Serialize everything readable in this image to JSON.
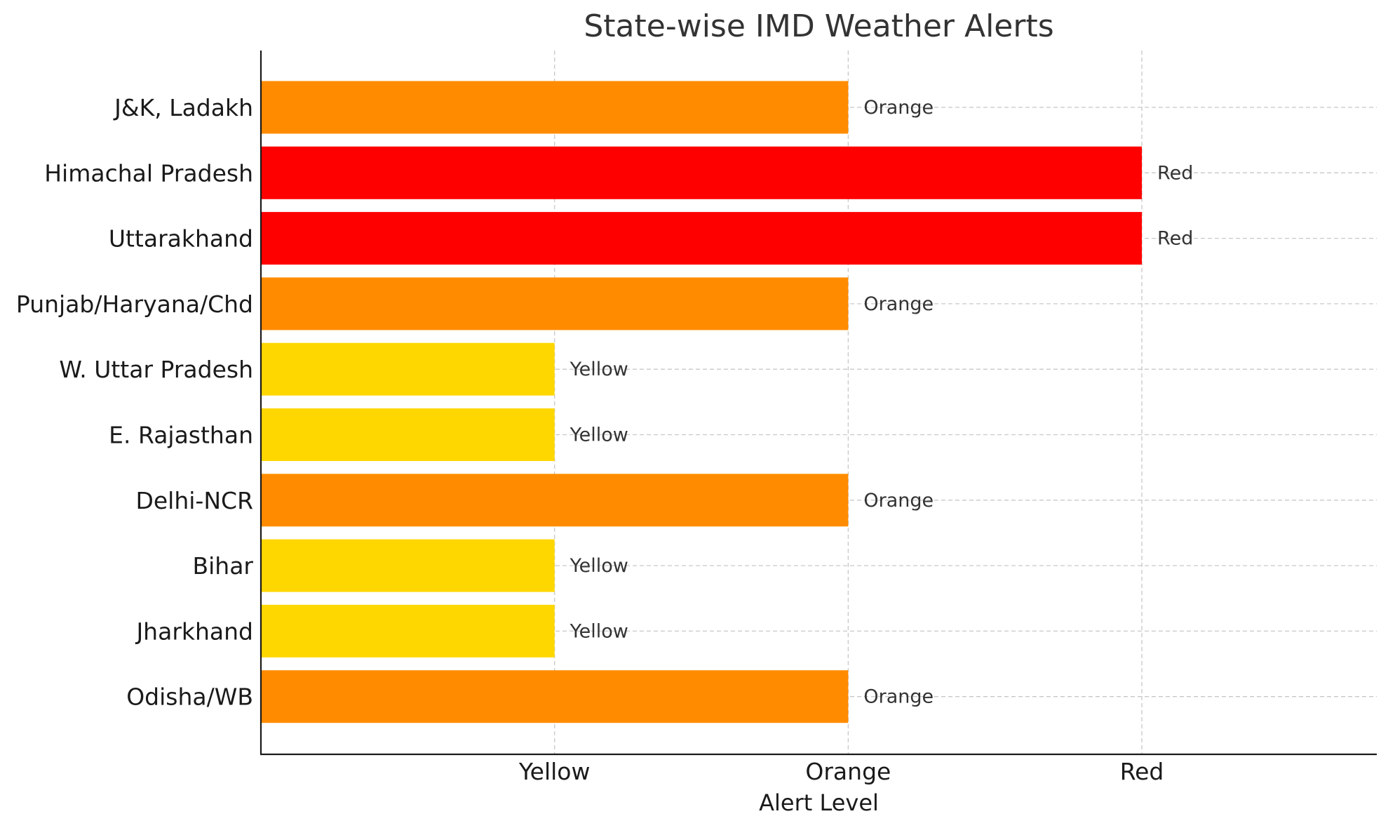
{
  "chart_data": {
    "type": "bar",
    "orientation": "horizontal",
    "title": "State-wise IMD Weather Alerts",
    "xlabel": "Alert Level",
    "ylabel": "",
    "x_ticks": [
      {
        "value": 1,
        "label": "Yellow"
      },
      {
        "value": 2,
        "label": "Orange"
      },
      {
        "value": 3,
        "label": "Red"
      }
    ],
    "xlim": [
      0,
      3.8
    ],
    "categories": [
      "J&K, Ladakh",
      "Himachal Pradesh",
      "Uttarakhand",
      "Punjab/Haryana/Chd",
      "W. Uttar Pradesh",
      "E. Rajasthan",
      "Delhi-NCR",
      "Bihar",
      "Jharkhand",
      "Odisha/WB"
    ],
    "values": [
      2,
      3,
      3,
      2,
      1,
      1,
      2,
      1,
      1,
      2
    ],
    "value_labels": [
      "Orange",
      "Red",
      "Red",
      "Orange",
      "Yellow",
      "Yellow",
      "Orange",
      "Yellow",
      "Yellow",
      "Orange"
    ],
    "bar_colors": [
      "#ff8c00",
      "#ff0000",
      "#ff0000",
      "#ff8c00",
      "#ffd700",
      "#ffd700",
      "#ff8c00",
      "#ffd700",
      "#ffd700",
      "#ff8c00"
    ],
    "grid": true,
    "grid_style": "dashed",
    "legend": "none"
  }
}
